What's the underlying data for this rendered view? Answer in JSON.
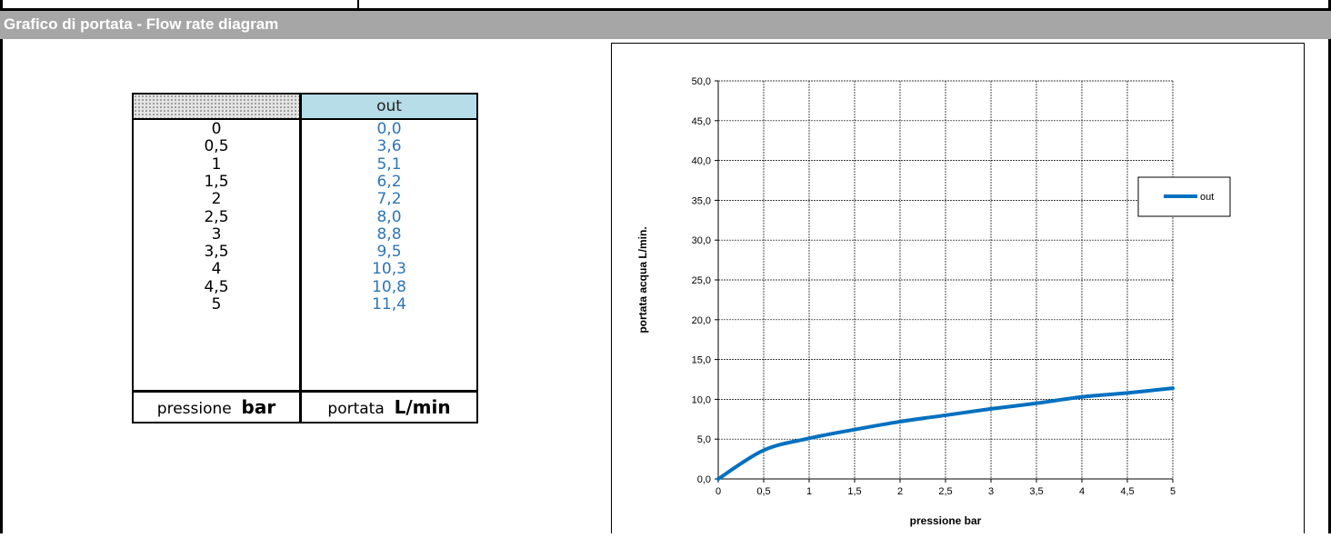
{
  "header": {
    "title": "Grafico di portata - Flow rate diagram"
  },
  "table": {
    "column_header": "out",
    "rows": [
      {
        "pressure": "0",
        "flow": "0,0"
      },
      {
        "pressure": "0,5",
        "flow": "3,6"
      },
      {
        "pressure": "1",
        "flow": "5,1"
      },
      {
        "pressure": "1,5",
        "flow": "6,2"
      },
      {
        "pressure": "2",
        "flow": "7,2"
      },
      {
        "pressure": "2,5",
        "flow": "8,0"
      },
      {
        "pressure": "3",
        "flow": "8,8"
      },
      {
        "pressure": "3,5",
        "flow": "9,5"
      },
      {
        "pressure": "4",
        "flow": "10,3"
      },
      {
        "pressure": "4,5",
        "flow": "10,8"
      },
      {
        "pressure": "5",
        "flow": "11,4"
      }
    ],
    "footer_left_text": "pressione",
    "footer_left_unit": "bar",
    "footer_right_text": "portata",
    "footer_right_unit": "L/min"
  },
  "chart_data": {
    "type": "line",
    "title": "",
    "xlabel": "pressione bar",
    "ylabel": "portata acqua  L/min.",
    "xlim": [
      0,
      5
    ],
    "ylim": [
      0,
      50
    ],
    "x_ticks": [
      "0",
      "0,5",
      "1",
      "1,5",
      "2",
      "2,5",
      "3",
      "3,5",
      "4",
      "4,5",
      "5"
    ],
    "y_ticks": [
      "0,0",
      "5,0",
      "10,0",
      "15,0",
      "20,0",
      "25,0",
      "30,0",
      "35,0",
      "40,0",
      "45,0",
      "50,0"
    ],
    "grid": true,
    "legend_position": "right",
    "series": [
      {
        "name": "out",
        "color": "#0070c0",
        "x": [
          0,
          0.5,
          1,
          1.5,
          2,
          2.5,
          3,
          3.5,
          4,
          4.5,
          5
        ],
        "y": [
          0.0,
          3.6,
          5.1,
          6.2,
          7.2,
          8.0,
          8.8,
          9.5,
          10.3,
          10.8,
          11.4
        ]
      }
    ]
  }
}
